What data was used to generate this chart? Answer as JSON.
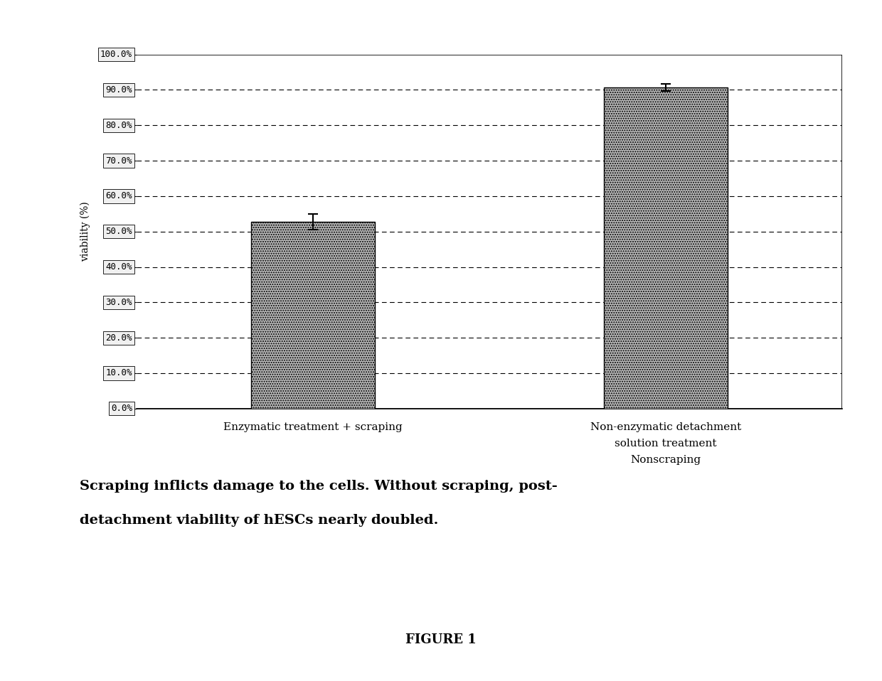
{
  "values": [
    0.527,
    0.906
  ],
  "errors": [
    0.022,
    0.01
  ],
  "bar_color": "#b8b8b8",
  "bar_edgecolor": "#000000",
  "ylabel": "viability (%)",
  "ylim": [
    0.0,
    1.0
  ],
  "yticks": [
    0.0,
    0.1,
    0.2,
    0.3,
    0.4,
    0.5,
    0.6,
    0.7,
    0.8,
    0.9,
    1.0
  ],
  "yticklabels": [
    "0.0%",
    "10.0%",
    "20.0%",
    "30.0%",
    "40.0%",
    "50.0%",
    "60.0%",
    "70.0%",
    "80.0%",
    "90.0%",
    "100.0%"
  ],
  "xlabel1": "Enzymatic treatment + scraping",
  "xlabel2_line1": "Non-enzymatic detachment",
  "xlabel2_line2": "solution treatment",
  "xlabel2_line3": "Nonscraping",
  "caption_line1": "Scraping inflicts damage to the cells. Without scraping, post-",
  "caption_line2": "detachment viability of hESCs nearly doubled.",
  "figure_label": "FIGURE 1",
  "background_color": "#ffffff",
  "bar_hatch": ".....",
  "tick_fontsize": 9,
  "ylabel_fontsize": 10,
  "xlabel_fontsize": 11,
  "caption_fontsize": 14,
  "figure_label_fontsize": 13
}
